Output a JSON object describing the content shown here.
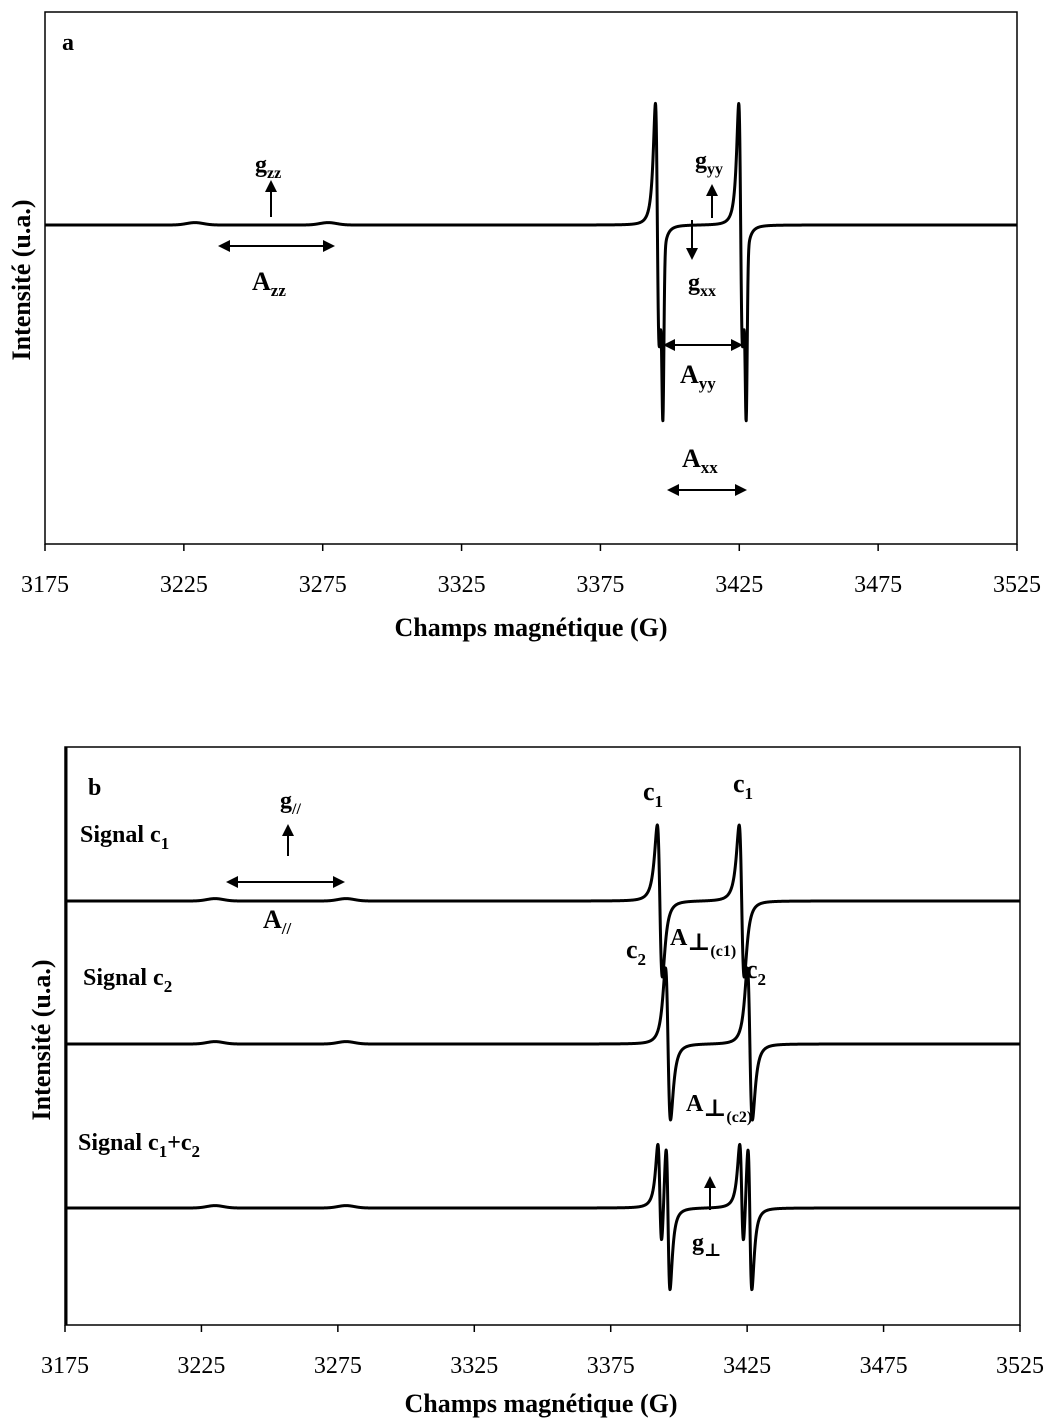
{
  "chart_data": [
    {
      "type": "line",
      "panel": "a",
      "xlabel": "Champs magnétique (G)",
      "ylabel": "Intensité (u.a.)",
      "xlim": [
        3175,
        3525
      ],
      "xticks": [
        "3175",
        "3225",
        "3275",
        "3325",
        "3375",
        "3425",
        "3475",
        "3525"
      ],
      "series": [
        {
          "features": [
            {
              "type": "bump",
              "x": 3229,
              "amp": 0.03,
              "w": 3
            },
            {
              "type": "bump",
              "x": 3277,
              "amp": 0.03,
              "w": 3
            },
            {
              "type": "deriv",
              "x": 3395.5,
              "amp": 0.9,
              "w": 1.2
            },
            {
              "type": "deriv",
              "x": 3425.5,
              "amp": 0.9,
              "w": 1.2
            },
            {
              "type": "spike",
              "x": 3397.5,
              "amp": -1.9,
              "w": 0.35
            },
            {
              "type": "spike",
              "x": 3427.5,
              "amp": -1.9,
              "w": 0.35
            }
          ]
        }
      ],
      "annotations": {
        "gzz": {
          "base": "g",
          "sub": "zz"
        },
        "azz": {
          "base": "A",
          "sub": "zz"
        },
        "gyy": {
          "base": "g",
          "sub": "yy"
        },
        "gxx": {
          "base": "g",
          "sub": "xx"
        },
        "ayy": {
          "base": "A",
          "sub": "yy"
        },
        "axx": {
          "base": "A",
          "sub": "xx"
        }
      }
    },
    {
      "type": "line",
      "panel": "b",
      "xlabel": "Champs magnétique (G)",
      "ylabel": "Intensité (u.a.)",
      "xlim": [
        3175,
        3525
      ],
      "xticks": [
        "3175",
        "3225",
        "3275",
        "3325",
        "3375",
        "3425",
        "3475",
        "3525"
      ],
      "series": [
        {
          "name": "Signal c1",
          "label_base": "Signal  c",
          "label_sub": "1",
          "features": [
            {
              "type": "bump",
              "x": 3230,
              "amp": 0.04,
              "w": 3
            },
            {
              "type": "bump",
              "x": 3278,
              "amp": 0.04,
              "w": 3
            },
            {
              "type": "deriv",
              "x": 3393,
              "amp": 0.75,
              "w": 1.6
            },
            {
              "type": "deriv",
              "x": 3423,
              "amp": 0.75,
              "w": 1.6
            }
          ]
        },
        {
          "name": "Signal c2",
          "label_base": "Signal  c",
          "label_sub": "2",
          "features": [
            {
              "type": "bump",
              "x": 3230,
              "amp": 0.04,
              "w": 3
            },
            {
              "type": "bump",
              "x": 3278,
              "amp": 0.04,
              "w": 3
            },
            {
              "type": "deriv",
              "x": 3396,
              "amp": 0.75,
              "w": 1.6
            },
            {
              "type": "deriv",
              "x": 3426,
              "amp": 0.75,
              "w": 1.6
            }
          ]
        },
        {
          "name": "Signal c1+c2",
          "label_parts": [
            "Signal  c",
            "1",
            "+c",
            "2"
          ],
          "features": [
            {
              "type": "bump",
              "x": 3230,
              "amp": 0.04,
              "w": 3
            },
            {
              "type": "bump",
              "x": 3278,
              "amp": 0.04,
              "w": 3
            },
            {
              "type": "deriv",
              "x": 3393,
              "amp": 0.55,
              "w": 1.3
            },
            {
              "type": "deriv",
              "x": 3423,
              "amp": 0.55,
              "w": 1.3
            },
            {
              "type": "deriv",
              "x": 3396,
              "amp": 0.75,
              "w": 1.3
            },
            {
              "type": "deriv",
              "x": 3426,
              "amp": 0.75,
              "w": 1.3
            }
          ]
        }
      ],
      "annotations": {
        "c1": {
          "base": "c",
          "sub": "1"
        },
        "c2": {
          "base": "c",
          "sub": "2"
        },
        "gpar": {
          "base": "g",
          "sub": "//"
        },
        "apar": {
          "base": "A",
          "sub": "//"
        },
        "aperp_c1": {
          "base": "A",
          "sub1": "⊥",
          "sub2": "(c1)"
        },
        "aperp_c2": {
          "base": "A",
          "sub1": "⊥",
          "sub2": "(c2)"
        },
        "gperp": {
          "base": "g",
          "sub": "⊥"
        }
      }
    }
  ],
  "colors": {
    "red": "#e8192c",
    "green": "#1a9e4f",
    "black": "#000000"
  }
}
